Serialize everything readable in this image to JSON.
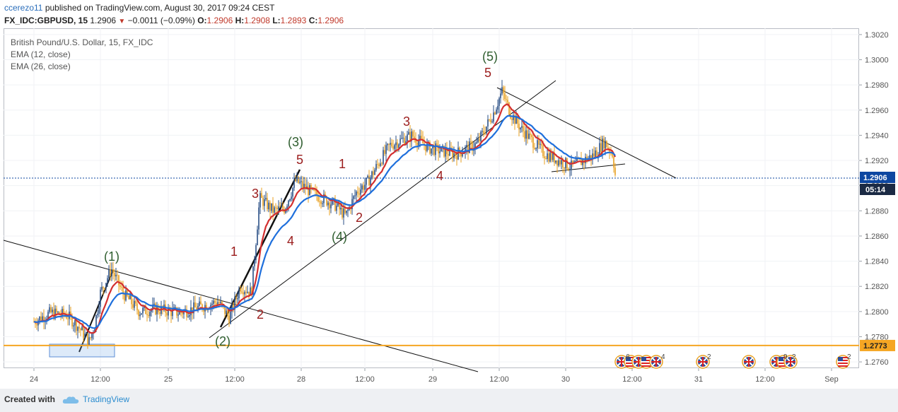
{
  "header": {
    "user": "ccerezo11",
    "published": "published on TradingView.com, August 30, 2017 09:24 CEST",
    "symbol": "FX_IDC:GBPUSD, 15",
    "last": "1.2906",
    "change_arrow": "▼",
    "change": "−0.0011 (−0.09%)",
    "o_label": "O:",
    "o": "1.2906",
    "h_label": "H:",
    "h": "1.2908",
    "l_label": "L:",
    "l": "1.2893",
    "c_label": "C:",
    "c": "1.2906"
  },
  "legend": {
    "title": "British Pound/U.S. Dollar, 15, FX_IDC",
    "ema12": "EMA (12, close)",
    "ema26": "EMA (26, close)"
  },
  "footer": {
    "created_with": "Created with",
    "brand": "TradingView"
  },
  "chart_data": {
    "type": "candlestick",
    "y_axis": {
      "ticks": [
        "1.3020",
        "1.3000",
        "1.2980",
        "1.2960",
        "1.2940",
        "1.2920",
        "1.2900",
        "1.2880",
        "1.2860",
        "1.2840",
        "1.2820",
        "1.2800",
        "1.2780",
        "1.2760"
      ],
      "range": [
        1.2755,
        1.3025
      ]
    },
    "x_axis": {
      "ticks": [
        "24",
        "12:00",
        "25",
        "12:00",
        "28",
        "12:00",
        "29",
        "12:00",
        "30",
        "12:00",
        "31",
        "12:00",
        "Sep"
      ]
    },
    "current_price": {
      "value": 1.2906,
      "label": "1.2906",
      "countdown": "05:14",
      "color": "#0d47a1"
    },
    "horizontal_level": {
      "value": 1.2773,
      "label": "1.2773",
      "color": "#f5a623"
    },
    "series": [
      {
        "name": "EMA (12, close)",
        "color": "#d32f2f"
      },
      {
        "name": "EMA (26, close)",
        "color": "#1e6fdc"
      }
    ],
    "price_path": [
      [
        "24 00:00",
        1.2792
      ],
      [
        "24 03:00",
        1.2799
      ],
      [
        "24 06:00",
        1.2797
      ],
      [
        "24 08:00",
        1.2788
      ],
      [
        "24 10:00",
        1.2776
      ],
      [
        "24 11:00",
        1.279
      ],
      [
        "24 12:00",
        1.2815
      ],
      [
        "24 14:00",
        1.2834
      ],
      [
        "24 16:00",
        1.2815
      ],
      [
        "24 19:00",
        1.28
      ],
      [
        "24 22:00",
        1.2802
      ],
      [
        "25 02:00",
        1.2799
      ],
      [
        "25 06:00",
        1.2804
      ],
      [
        "25 09:00",
        1.2808
      ],
      [
        "25 11:00",
        1.2795
      ],
      [
        "25 13:00",
        1.282
      ],
      [
        "25 15:00",
        1.2815
      ],
      [
        "25 16:30",
        1.289
      ],
      [
        "25 19:00",
        1.288
      ],
      [
        "25 21:00",
        1.2882
      ],
      [
        "25 23:00",
        1.2904
      ],
      [
        "28 02:00",
        1.2894
      ],
      [
        "28 06:00",
        1.2885
      ],
      [
        "28 08:00",
        1.2876
      ],
      [
        "28 10:00",
        1.2895
      ],
      [
        "28 12:00",
        1.2903
      ],
      [
        "28 14:00",
        1.2918
      ],
      [
        "28 16:00",
        1.2932
      ],
      [
        "28 20:00",
        1.294
      ],
      [
        "28 23:00",
        1.293
      ],
      [
        "29 04:00",
        1.2925
      ],
      [
        "29 08:00",
        1.2933
      ],
      [
        "29 11:00",
        1.2958
      ],
      [
        "29 12:30",
        1.2975
      ],
      [
        "29 14:00",
        1.2958
      ],
      [
        "29 16:00",
        1.2945
      ],
      [
        "29 20:00",
        1.2926
      ],
      [
        "30 01:00",
        1.2915
      ],
      [
        "30 05:00",
        1.2924
      ],
      [
        "30 07:00",
        1.2935
      ],
      [
        "30 08:30",
        1.2925
      ],
      [
        "30 09:00",
        1.2906
      ]
    ],
    "waves": [
      {
        "label": "(1)",
        "color": "#2e5d2e"
      },
      {
        "label": "(2)",
        "color": "#2e5d2e"
      },
      {
        "label": "(3)",
        "color": "#2e5d2e"
      },
      {
        "label": "(4)",
        "color": "#2e5d2e"
      },
      {
        "label": "(5)",
        "color": "#2e5d2e"
      },
      {
        "label": "1",
        "color": "#9b1c1c"
      },
      {
        "label": "2",
        "color": "#9b1c1c"
      },
      {
        "label": "3",
        "color": "#9b1c1c"
      },
      {
        "label": "4",
        "color": "#9b1c1c"
      },
      {
        "label": "5",
        "color": "#9b1c1c"
      },
      {
        "label": "1",
        "color": "#9b1c1c"
      },
      {
        "label": "2",
        "color": "#9b1c1c"
      },
      {
        "label": "3",
        "color": "#9b1c1c"
      },
      {
        "label": "4",
        "color": "#9b1c1c"
      },
      {
        "label": "5",
        "color": "#9b1c1c"
      }
    ],
    "events": [
      {
        "type": "flags",
        "count": "6",
        "extra": "4"
      },
      {
        "type": "flag-uk",
        "count": "2"
      },
      {
        "type": "flag-uk",
        "count": ""
      },
      {
        "type": "flags",
        "count": "9",
        "extra": "2"
      },
      {
        "type": "flag-us",
        "count": "2"
      }
    ]
  }
}
